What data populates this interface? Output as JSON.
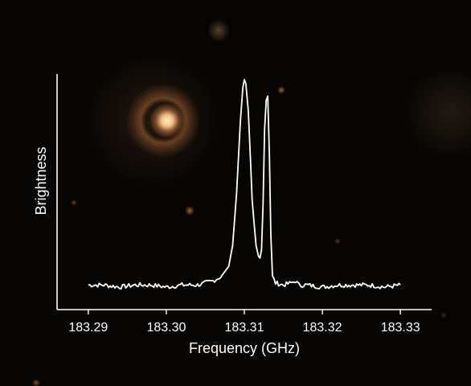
{
  "chart_data": {
    "type": "line",
    "xlabel": "Frequency (GHz)",
    "ylabel": "Brightness",
    "xlim": [
      183.286,
      183.334
    ],
    "ylim": [
      0,
      1
    ],
    "x_ticks": [
      "183.29",
      "183.30",
      "183.31",
      "183.32",
      "183.33"
    ],
    "x_tick_values": [
      183.29,
      183.3,
      183.31,
      183.32,
      183.33
    ],
    "grid": false,
    "series": [
      {
        "color": "#ffffff",
        "x": [
          183.29,
          183.292,
          183.294,
          183.296,
          183.298,
          183.3,
          183.302,
          183.304,
          183.305,
          183.306,
          183.307,
          183.308,
          183.3085,
          183.309,
          183.3095,
          183.3098,
          183.31,
          183.3102,
          183.3105,
          183.3108,
          183.311,
          183.3115,
          183.3118,
          183.312,
          183.3122,
          183.3124,
          183.3126,
          183.3128,
          183.313,
          183.3132,
          183.3134,
          183.3136,
          183.314,
          183.315,
          183.316,
          183.3165,
          183.317,
          183.318,
          183.32,
          183.322,
          183.324,
          183.326,
          183.328,
          183.33
        ],
        "values": [
          0.01,
          0.01,
          0.0,
          0.01,
          0.01,
          0.0,
          0.01,
          0.01,
          0.02,
          0.03,
          0.05,
          0.1,
          0.2,
          0.45,
          0.8,
          0.96,
          1.0,
          0.98,
          0.85,
          0.6,
          0.42,
          0.2,
          0.15,
          0.14,
          0.18,
          0.4,
          0.76,
          0.9,
          0.92,
          0.65,
          0.25,
          0.05,
          0.02,
          0.01,
          0.02,
          0.03,
          0.01,
          0.01,
          0.0,
          0.01,
          0.01,
          0.01,
          0.0,
          0.01
        ]
      }
    ]
  }
}
